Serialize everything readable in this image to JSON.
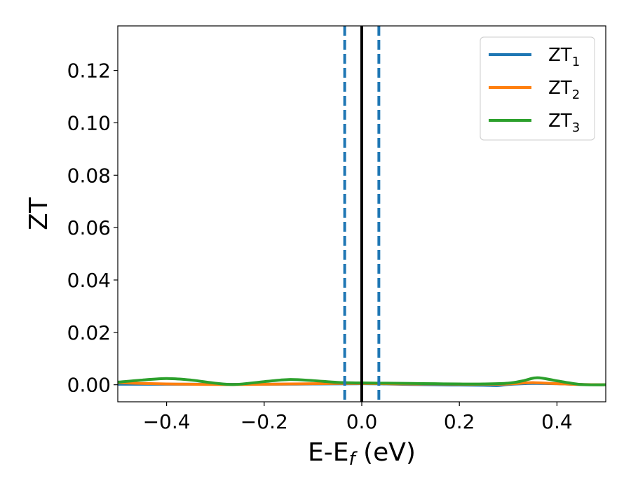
{
  "chart_data": {
    "type": "line",
    "xlabel": "E-E_f (eV)",
    "ylabel": "ZT",
    "xlim": [
      -0.5,
      0.5
    ],
    "ylim": [
      -0.0065,
      0.137
    ],
    "xticks": [
      -0.4,
      -0.2,
      0.0,
      0.2,
      0.4
    ],
    "xtick_labels": [
      "−0.4",
      "−0.2",
      "0.0",
      "0.2",
      "0.4"
    ],
    "yticks": [
      0.0,
      0.02,
      0.04,
      0.06,
      0.08,
      0.1,
      0.12
    ],
    "ytick_labels": [
      "0.00",
      "0.02",
      "0.04",
      "0.06",
      "0.08",
      "0.10",
      "0.12"
    ],
    "grid": false,
    "legend_position": "top-right",
    "series": [
      {
        "name": "ZT1",
        "label_main": "ZT",
        "label_sub": "1",
        "color": "#1f77b4",
        "x": [
          -0.5,
          -0.4,
          -0.3,
          -0.2,
          -0.1,
          0.0,
          0.05,
          0.1,
          0.15,
          0.2,
          0.25,
          0.28,
          0.3,
          0.35,
          0.4,
          0.45,
          0.5
        ],
        "y": [
          0.0002,
          0.0002,
          0.0002,
          0.0002,
          0.0003,
          0.0004,
          0.0003,
          0.0001,
          0.0,
          -0.0001,
          -0.0002,
          -0.0003,
          0.0001,
          0.0005,
          0.0004,
          0.0001,
          0.0
        ]
      },
      {
        "name": "ZT2",
        "label_main": "ZT",
        "label_sub": "2",
        "color": "#ff7f0e",
        "x": [
          -0.5,
          -0.45,
          -0.4,
          -0.35,
          -0.3,
          -0.25,
          -0.2,
          -0.15,
          -0.1,
          -0.05,
          0.0,
          0.05,
          0.1,
          0.15,
          0.2,
          0.25,
          0.3,
          0.35,
          0.4,
          0.45,
          0.5
        ],
        "y": [
          0.0008,
          0.0005,
          0.0003,
          0.0002,
          0.0001,
          0.0001,
          0.0002,
          0.0003,
          0.0004,
          0.0005,
          0.0005,
          0.0004,
          0.0003,
          0.0003,
          0.0002,
          0.0002,
          0.0003,
          0.0008,
          0.0004,
          0.0001,
          0.0
        ]
      },
      {
        "name": "ZT3",
        "label_main": "ZT",
        "label_sub": "3",
        "color": "#2ca02c",
        "x": [
          -0.5,
          -0.45,
          -0.4,
          -0.35,
          -0.3,
          -0.26,
          -0.2,
          -0.15,
          -0.1,
          -0.05,
          0.0,
          0.05,
          0.1,
          0.15,
          0.2,
          0.25,
          0.3,
          0.33,
          0.36,
          0.4,
          0.45,
          0.5
        ],
        "y": [
          0.001,
          0.0018,
          0.0024,
          0.0018,
          0.0006,
          0.0001,
          0.0012,
          0.002,
          0.0016,
          0.0009,
          0.0007,
          0.0006,
          0.0005,
          0.0004,
          0.0003,
          0.0003,
          0.0006,
          0.0015,
          0.0027,
          0.0015,
          0.0001,
          0.0
        ]
      }
    ],
    "vlines": [
      {
        "x": -0.035,
        "style": "dashed",
        "color": "#1f77b4"
      },
      {
        "x": 0.0,
        "style": "solid",
        "color": "#000000"
      },
      {
        "x": 0.035,
        "style": "dashed",
        "color": "#1f77b4"
      }
    ]
  }
}
